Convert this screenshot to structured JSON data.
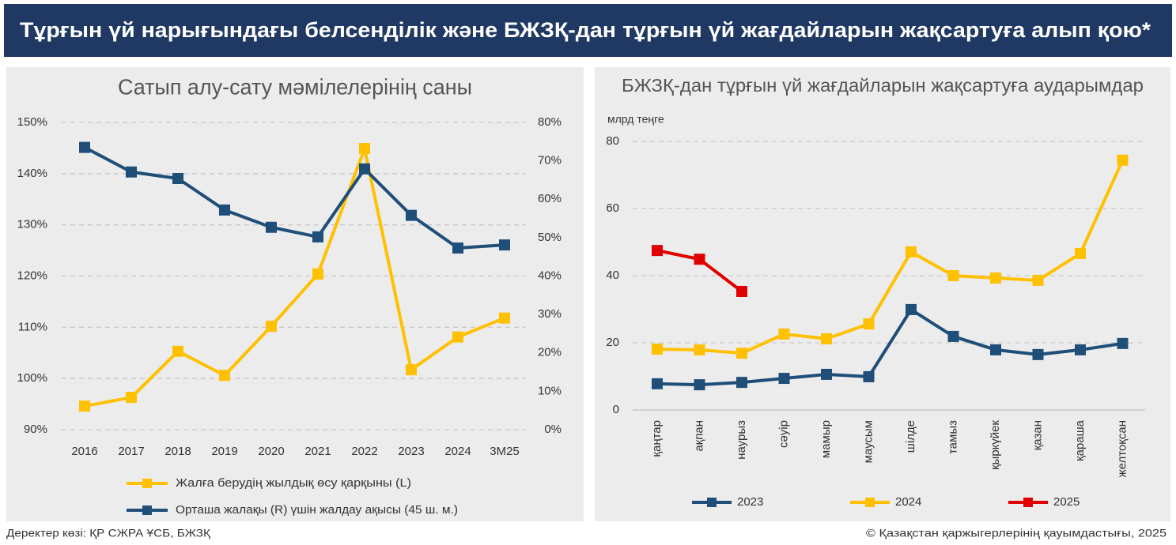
{
  "header": {
    "title": "Тұрғын үй нарығындағы белсенділік және БЖЗҚ-дан тұрғын үй жағдайларын жақсартуға алып қою*"
  },
  "footer": {
    "source": "Деректер көзі: ҚР СЖРА ҰСБ, БЖЗҚ",
    "copyright": "© Қазақстан қаржыгерлерінің қауымдастығы, 2025"
  },
  "chart_data": [
    {
      "type": "line",
      "title": "Сатып алу-сату мәмілелерінің саны",
      "categories": [
        "2016",
        "2017",
        "2018",
        "2019",
        "2020",
        "2021",
        "2022",
        "2023",
        "2024",
        "3М25"
      ],
      "series": [
        {
          "name": "Жалға берудің жылдық өсу қарқыны (L)",
          "color": "#ffc000",
          "values": [
            94.6,
            96.3,
            105.3,
            100.6,
            110.2,
            120.4,
            144.9,
            101.7,
            108.1,
            111.8
          ]
        },
        {
          "name": "Орташа жалақы (R) үшін жалдау ақысы (45 ш. м.)",
          "color": "#1f4e79",
          "axis": "y2",
          "values": [
            73.5,
            67.1,
            65.4,
            57.2,
            52.7,
            50.2,
            67.9,
            55.8,
            47.3,
            48.1
          ]
        }
      ],
      "ylim": [
        90,
        150
      ],
      "yticks": [
        {
          "value": 90,
          "label": "90%"
        },
        {
          "value": 100,
          "label": "100%"
        },
        {
          "value": 110,
          "label": "110%"
        },
        {
          "value": 120,
          "label": "120%"
        },
        {
          "value": 130,
          "label": "130%"
        },
        {
          "value": 140,
          "label": "140%"
        },
        {
          "value": 150,
          "label": "150%"
        }
      ],
      "y2lim": [
        0,
        80
      ],
      "y2ticks": [
        {
          "value": 0,
          "label": "0%"
        },
        {
          "value": 10,
          "label": "10%"
        },
        {
          "value": 20,
          "label": "20%"
        },
        {
          "value": 30,
          "label": "30%"
        },
        {
          "value": 40,
          "label": "40%"
        },
        {
          "value": 50,
          "label": "50%"
        },
        {
          "value": 60,
          "label": "60%"
        },
        {
          "value": 70,
          "label": "70%"
        },
        {
          "value": 80,
          "label": "80%"
        }
      ],
      "grid": true,
      "legend": "bottom"
    },
    {
      "type": "line",
      "title": "БЖЗҚ-дан тұрғын үй жағдайларын жақсартуға аударымдар",
      "y_unit": "млрд теңге",
      "categories": [
        "қаңтар",
        "ақпан",
        "наурыз",
        "сәуір",
        "мамыр",
        "маусым",
        "шілде",
        "тамыз",
        "қыркүйек",
        "қазан",
        "қараша",
        "желтоқсан"
      ],
      "series": [
        {
          "name": "2023",
          "color": "#1f4e79",
          "values": [
            7.8,
            7.5,
            8.2,
            9.4,
            10.6,
            9.9,
            29.9,
            21.9,
            17.9,
            16.5,
            17.9,
            19.8
          ]
        },
        {
          "name": "2024",
          "color": "#ffc000",
          "values": [
            18.1,
            17.9,
            16.9,
            22.6,
            21.2,
            25.6,
            47.1,
            40.0,
            39.3,
            38.6,
            46.6,
            74.4
          ]
        },
        {
          "name": "2025",
          "color": "#e00000",
          "values": [
            47.5,
            44.9,
            35.3,
            null,
            null,
            null,
            null,
            null,
            null,
            null,
            null,
            null
          ]
        }
      ],
      "ylim": [
        0,
        80
      ],
      "yticks": [
        0,
        20,
        40,
        60,
        80
      ],
      "grid": true,
      "legend": "bottom"
    }
  ]
}
